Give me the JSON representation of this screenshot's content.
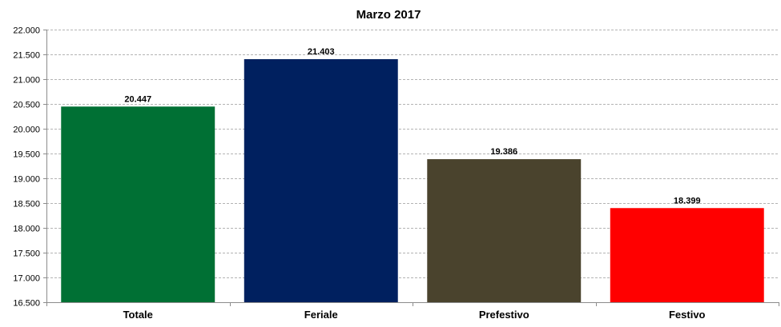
{
  "chart_data": {
    "type": "bar",
    "title": "Marzo 2017",
    "xlabel": "",
    "ylabel": "",
    "categories": [
      "Totale",
      "Feriale",
      "Prefestivo",
      "Festivo"
    ],
    "values": [
      20447,
      21403,
      19386,
      18399
    ],
    "value_labels": [
      "20.447",
      "21.403",
      "19.386",
      "18.399"
    ],
    "colors": [
      "#007034",
      "#00205f",
      "#4a432d",
      "#ff0000"
    ],
    "ylim": [
      16500,
      22000
    ],
    "ytick_values": [
      16500,
      17000,
      17500,
      18000,
      18500,
      19000,
      19500,
      20000,
      20500,
      21000,
      21500,
      22000
    ],
    "ytick_labels": [
      "16.500",
      "17.000",
      "17.500",
      "18.000",
      "18.500",
      "19.000",
      "19.500",
      "20.000",
      "20.500",
      "21.000",
      "21.500",
      "22.000"
    ],
    "grid": true,
    "legend": "none"
  }
}
